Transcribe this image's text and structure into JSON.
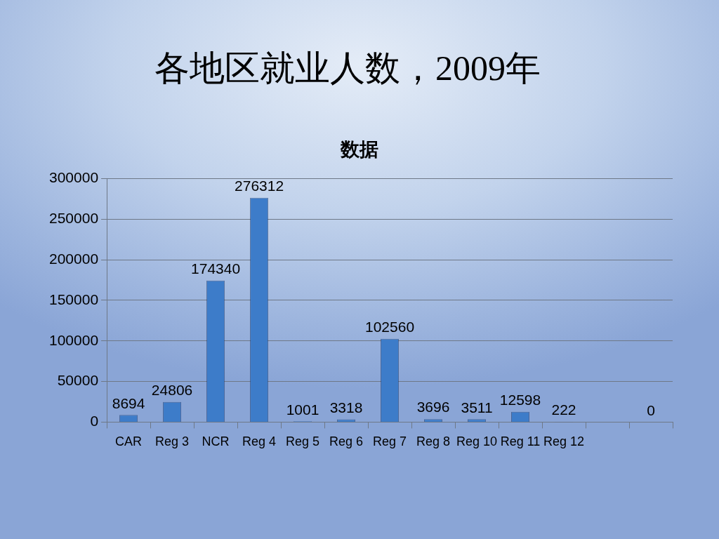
{
  "chart_data": {
    "type": "bar",
    "title": "各地区就业人数，2009年",
    "subtitle": "数据",
    "categories": [
      "CAR",
      "Reg 3",
      "NCR",
      "Reg 4",
      "Reg 5",
      "Reg 6",
      "Reg 7",
      "Reg 8",
      "Reg 10",
      "Reg 11",
      "Reg 12",
      null,
      null
    ],
    "values": [
      8694,
      24806,
      174340,
      276312,
      1001,
      3318,
      102560,
      3696,
      3511,
      12598,
      222,
      null,
      0
    ],
    "color": "#3d7cc9",
    "ylim": [
      0,
      300000
    ],
    "yticks": [
      0,
      50000,
      100000,
      150000,
      200000,
      250000,
      300000
    ],
    "grid": "y",
    "data_labels": true
  }
}
